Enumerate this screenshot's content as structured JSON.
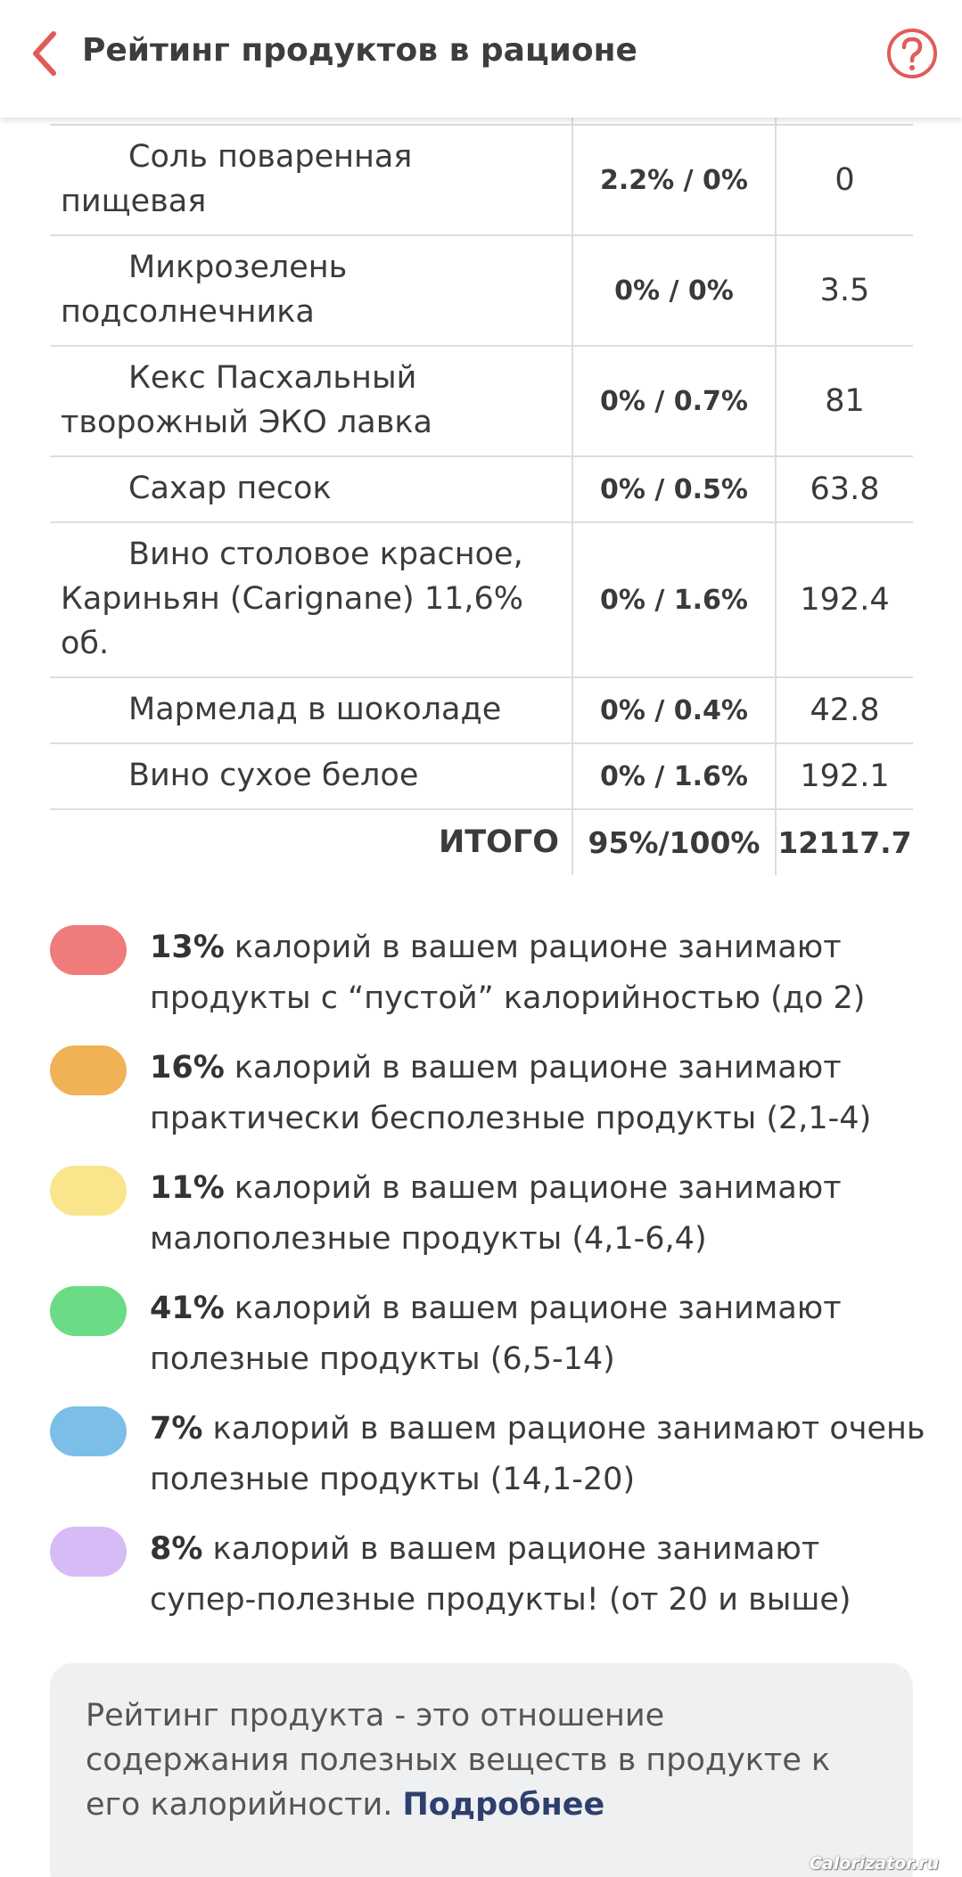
{
  "header": {
    "title": "Рейтинг продуктов в рационе"
  },
  "table": {
    "rows": [
      {
        "name": "Соль поваренная пищевая",
        "share": "2.2% / 0%",
        "kcal": "0"
      },
      {
        "name": "Микрозелень подсолнечника",
        "share": "0% / 0%",
        "kcal": "3.5"
      },
      {
        "name": "Кекс Пасхальный творожный ЭКО лавка",
        "share": "0% / 0.7%",
        "kcal": "81"
      },
      {
        "name": "Сахар песок",
        "share": "0% / 0.5%",
        "kcal": "63.8"
      },
      {
        "name": "Вино столовое красное, Кариньян (Carignane) 11,6% об.",
        "share": "0% / 1.6%",
        "kcal": "192.4"
      },
      {
        "name": "Мармелад в шоколаде",
        "share": "0% / 0.4%",
        "kcal": "42.8"
      },
      {
        "name": "Вино сухое белое",
        "share": "0% / 1.6%",
        "kcal": "192.1"
      }
    ],
    "total": {
      "label": "ИТОГО",
      "share": "95%/100%",
      "kcal": "12117.7"
    }
  },
  "legend": {
    "items": [
      {
        "percent": "13%",
        "text": " калорий в вашем рационе занимают продукты с “пустой” калорийностью (до 2)",
        "color": "#ef7c7a"
      },
      {
        "percent": "16%",
        "text": " калорий в вашем рационе занимают практически бесполезные продукты (2,1-4)",
        "color": "#f0b255"
      },
      {
        "percent": "11%",
        "text": " калорий в вашем рационе занимают малополезные продукты (4,1-6,4)",
        "color": "#fae58d"
      },
      {
        "percent": "41%",
        "text": " калорий в вашем рационе занимают полезные продукты (6,5-14)",
        "color": "#6bdc85"
      },
      {
        "percent": "7%",
        "text": " калорий в вашем рационе занимают очень полезные продукты (14,1-20)",
        "color": "#7bbfe8"
      },
      {
        "percent": "8%",
        "text": " калорий в вашем рационе занимают супер-полезные продукты! (от 20 и выше)",
        "color": "#d6bbf7"
      }
    ]
  },
  "info": {
    "text": "Рейтинг продукта - это отношение содержания полезных веществ в продукте к его калорийности. ",
    "link": "Подробнее"
  },
  "watermark": "Calorizator.ru",
  "colors": {
    "accent": "#e25b57",
    "link": "#2e3f6e",
    "info_bg": "#eff0f2"
  }
}
